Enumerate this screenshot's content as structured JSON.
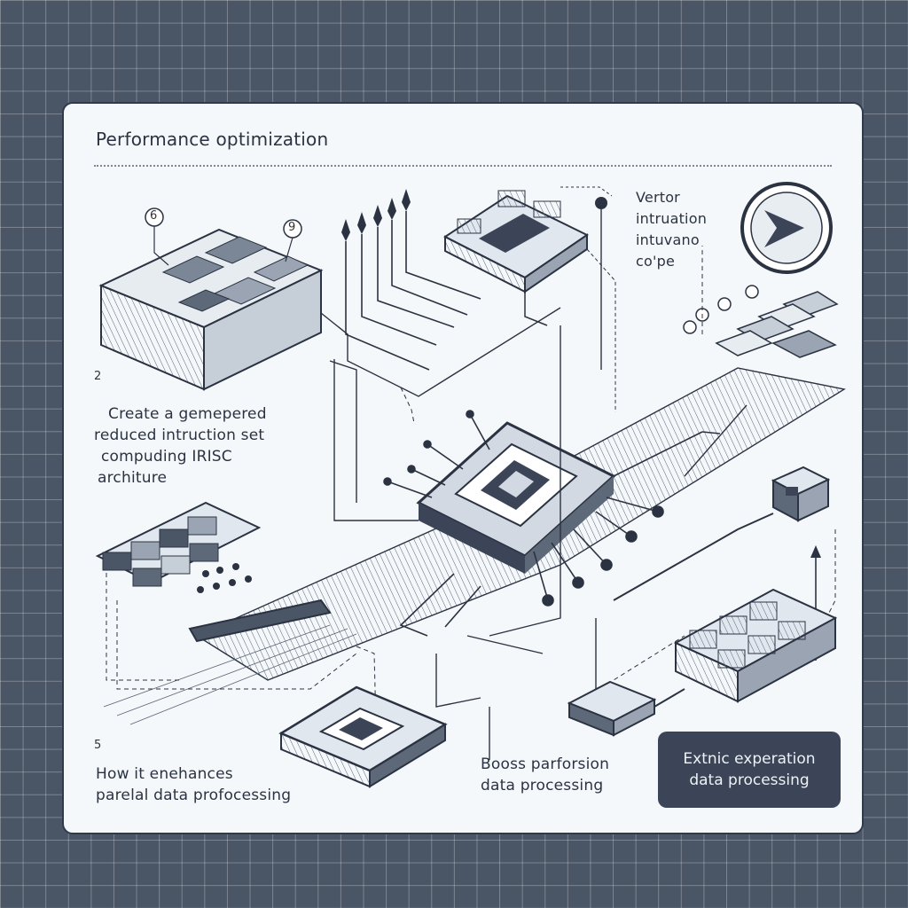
{
  "title": "Performance optimization",
  "labels": {
    "marker_a": "6",
    "marker_b": "9",
    "step_2": "2",
    "step_5": "5",
    "block_left": [
      "Create a gemepered",
      "reduced intruction set",
      "compuding IRISC",
      "architure"
    ],
    "block_vector": [
      "Vertor",
      "intruation",
      "intuvano",
      "co'pe"
    ],
    "block_bottom_left": [
      "How it enehances",
      "parelal data profocessing"
    ],
    "block_bottom_mid": [
      "Booss parforsion",
      "data processing"
    ],
    "callout": [
      "Extnic experation",
      "data processing"
    ]
  },
  "colors": {
    "background": "#4a5566",
    "panel": "#f4f8fb",
    "ink": "#2b3342",
    "callout": "#3b4557"
  },
  "icons": [
    "clock-icon",
    "cpu-chip-icon",
    "memory-module-icon",
    "connector-pin-icon"
  ]
}
